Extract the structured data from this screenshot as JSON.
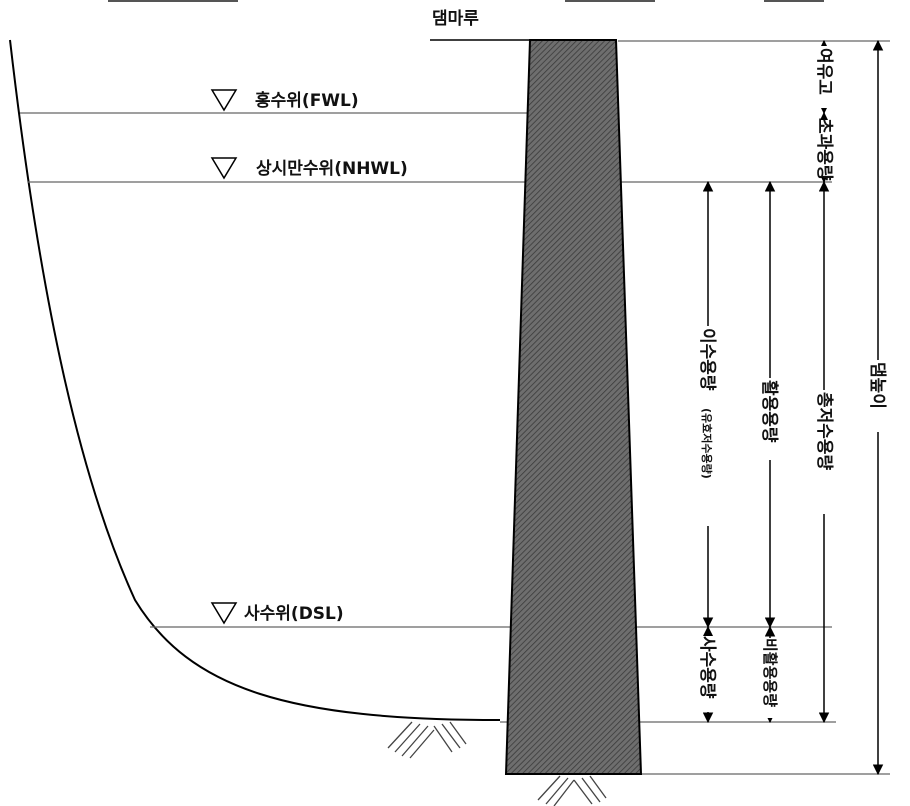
{
  "labels": {
    "crest": "댐마루",
    "fwl": "홍수위(FWL)",
    "nhwl": "상시만수위(NHWL)",
    "dsl": "사수위(DSL)"
  },
  "dimensions": {
    "freeboard": "여유고",
    "surcharge": "초과용량",
    "water_use_main": "이수용량",
    "water_use_sub": "(유효저수용량)",
    "active": "활용용량",
    "total": "총저수용량",
    "dam_height": "댐높이",
    "dead": "사수용량",
    "inactive": "비활용용량"
  }
}
